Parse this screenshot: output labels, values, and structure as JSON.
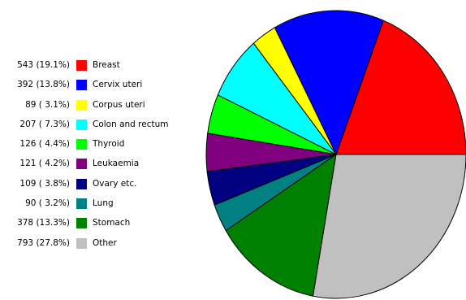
{
  "chart_data": {
    "type": "pie",
    "start_angle_deg": 0,
    "direction": "counterclockwise",
    "slices": [
      {
        "name": "Breast",
        "value": 543,
        "percent_label": "543 (19.1%)",
        "color": "#ff0000"
      },
      {
        "name": "Cervix uteri",
        "value": 392,
        "percent_label": "392 (13.8%)",
        "color": "#0000ff"
      },
      {
        "name": "Corpus uteri",
        "value": 89,
        "percent_label": "89 ( 3.1%)",
        "color": "#ffff00"
      },
      {
        "name": "Colon and rectum",
        "value": 207,
        "percent_label": "207 ( 7.3%)",
        "color": "#00ffff"
      },
      {
        "name": "Thyroid",
        "value": 126,
        "percent_label": "126 ( 4.4%)",
        "color": "#00ff00"
      },
      {
        "name": "Leukaemia",
        "value": 121,
        "percent_label": "121 ( 4.2%)",
        "color": "#800080"
      },
      {
        "name": "Ovary etc.",
        "value": 109,
        "percent_label": "109 ( 3.8%)",
        "color": "#000080"
      },
      {
        "name": "Lung",
        "value": 90,
        "percent_label": "90 ( 3.2%)",
        "color": "#008080"
      },
      {
        "name": "Stomach",
        "value": 378,
        "percent_label": "378 (13.3%)",
        "color": "#008000"
      },
      {
        "name": "Other",
        "value": 793,
        "percent_label": "793 (27.8%)",
        "color": "#c0c0c0"
      }
    ],
    "legend_position": "left"
  }
}
